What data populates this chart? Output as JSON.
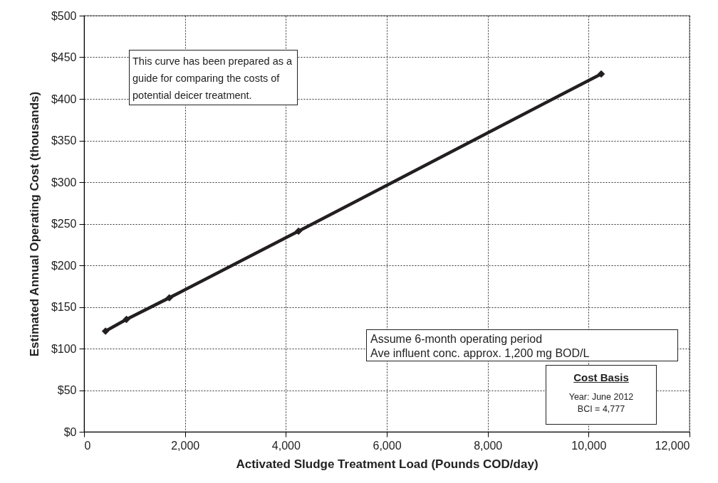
{
  "chart_data": {
    "type": "line",
    "xlabel": "Activated Sludge Treatment Load (Pounds COD/day)",
    "ylabel": "Estimated Annual Operating Cost (thousands)",
    "x": [
      425,
      840,
      1690,
      4250,
      10250
    ],
    "series": [
      {
        "color": "#231f20",
        "values": [
          121,
          135,
          161,
          241,
          430
        ]
      }
    ],
    "xlim": [
      0,
      12000
    ],
    "xticks": [
      0,
      {
        "value": 2000,
        "label": "2,000"
      },
      {
        "value": 4000,
        "label": "4,000"
      },
      {
        "value": 6000,
        "label": "6,000"
      },
      {
        "value": 8000,
        "label": "8,000"
      },
      {
        "value": 10000,
        "label": "10,000"
      },
      {
        "value": 12000,
        "label": "12,000"
      }
    ],
    "ylim": [
      0,
      500
    ],
    "yticks": [
      {
        "value": 0,
        "label": "$0"
      },
      {
        "value": 50,
        "label": "$50"
      },
      {
        "value": 100,
        "label": "$100"
      },
      {
        "value": 150,
        "label": "$150"
      },
      {
        "value": 200,
        "label": "$200"
      },
      {
        "value": 250,
        "label": "$250"
      },
      {
        "value": 300,
        "label": "$300"
      },
      {
        "value": 350,
        "label": "$350"
      },
      {
        "value": 400,
        "label": "$400"
      },
      {
        "value": 450,
        "label": "$450"
      },
      {
        "value": 500,
        "label": "$500"
      }
    ],
    "grid": true,
    "marker": "diamond",
    "line_style": "solid",
    "annotations": [
      "This curve has been prepared as a\nguide for comparing the costs of\npotential deicer treatment.",
      "Assume 6-month operating period\nAve influent conc. approx. 1,200 mg BOD/L",
      "Cost Basis",
      "Year: June 2012\nBCI = 4,777"
    ]
  }
}
